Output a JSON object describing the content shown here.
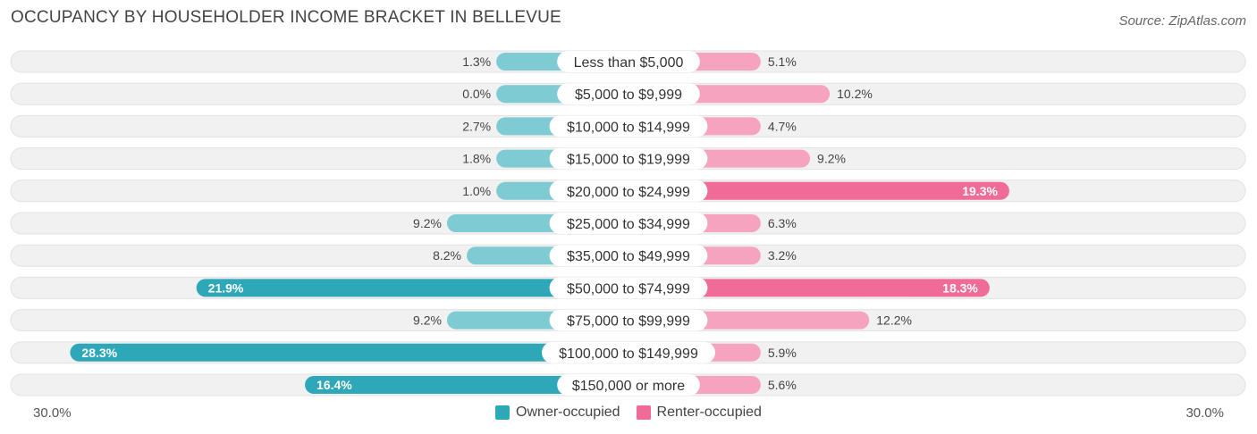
{
  "header": {
    "title": "OCCUPANCY BY HOUSEHOLDER INCOME BRACKET IN BELLEVUE",
    "source": "Source: ZipAtlas.com"
  },
  "axis": {
    "left_label": "30.0%",
    "right_label": "30.0%"
  },
  "legend": {
    "owner": "Owner-occupied",
    "renter": "Renter-occupied"
  },
  "colors": {
    "owner": "#2ea8b9",
    "owner_light": "#7fcbd4",
    "renter": "#f06b97",
    "renter_light": "#f5a3bf",
    "track": "#f1f1f1"
  },
  "chart_data": {
    "type": "bar",
    "orientation": "horizontal-diverging",
    "title": "OCCUPANCY BY HOUSEHOLDER INCOME BRACKET IN BELLEVUE",
    "xlim": [
      -30,
      30
    ],
    "categories": [
      "Less than $5,000",
      "$5,000 to $9,999",
      "$10,000 to $14,999",
      "$15,000 to $19,999",
      "$20,000 to $24,999",
      "$25,000 to $34,999",
      "$35,000 to $49,999",
      "$50,000 to $74,999",
      "$75,000 to $99,999",
      "$100,000 to $149,999",
      "$150,000 or more"
    ],
    "series": [
      {
        "name": "Owner-occupied",
        "values": [
          1.3,
          0.0,
          2.7,
          1.8,
          1.0,
          9.2,
          8.2,
          21.9,
          9.2,
          28.3,
          16.4
        ],
        "labels": [
          "1.3%",
          "0.0%",
          "2.7%",
          "1.8%",
          "1.0%",
          "9.2%",
          "8.2%",
          "21.9%",
          "9.2%",
          "28.3%",
          "16.4%"
        ]
      },
      {
        "name": "Renter-occupied",
        "values": [
          5.1,
          10.2,
          4.7,
          9.2,
          19.3,
          6.3,
          3.2,
          18.3,
          12.2,
          5.9,
          5.6
        ],
        "labels": [
          "5.1%",
          "10.2%",
          "4.7%",
          "9.2%",
          "19.3%",
          "6.3%",
          "3.2%",
          "18.3%",
          "12.2%",
          "5.9%",
          "5.6%"
        ]
      }
    ]
  }
}
